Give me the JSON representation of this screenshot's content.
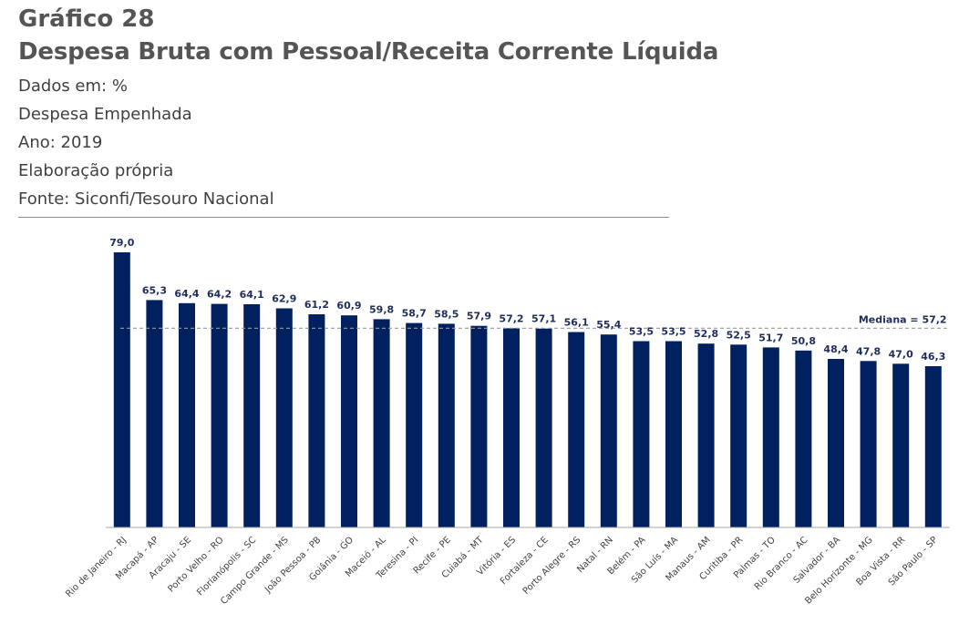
{
  "header": {
    "chart_number": "Gráfico 28",
    "title": "Despesa Bruta com Pessoal/Receita Corrente Líquida",
    "units": "Dados em: %",
    "expense_type": "Despesa Empenhada",
    "year": "Ano: 2019",
    "elaboration": "Elaboração própria",
    "source": "Fonte: Siconfi/Tesouro Nacional"
  },
  "colors": {
    "bar": "#002060",
    "median_line": "#999999",
    "axis": "#a6a6a6"
  },
  "chart_data": {
    "type": "bar",
    "title": "Despesa Bruta com Pessoal/Receita Corrente Líquida",
    "xlabel": "",
    "ylabel": "",
    "ylim": [
      0,
      79
    ],
    "grid": false,
    "categories": [
      "Rio de Janeiro - RJ",
      "Macapá - AP",
      "Aracaju - SE",
      "Porto Velho - RO",
      "Florianópolis - SC",
      "Campo Grande - MS",
      "João Pessoa - PB",
      "Goiânia - GO",
      "Maceió - AL",
      "Teresina - PI",
      "Recife - PE",
      "Cuiabá - MT",
      "Vitória - ES",
      "Fortaleza - CE",
      "Porto Alegre - RS",
      "Natal - RN",
      "Belém - PA",
      "São Luís - MA",
      "Manaus - AM",
      "Curitiba - PR",
      "Palmas - TO",
      "Rio Branco - AC",
      "Salvador - BA",
      "Belo Horizonte - MG",
      "Boa Vista - RR",
      "São Paulo - SP"
    ],
    "values": [
      79.0,
      65.3,
      64.4,
      64.2,
      64.1,
      62.9,
      61.2,
      60.9,
      59.8,
      58.7,
      58.5,
      57.9,
      57.2,
      57.1,
      56.1,
      55.4,
      53.5,
      53.5,
      52.8,
      52.5,
      51.7,
      50.8,
      48.4,
      47.8,
      47.0,
      46.3
    ],
    "labels": [
      "79,0",
      "65,3",
      "64,4",
      "64,2",
      "64,1",
      "62,9",
      "61,2",
      "60,9",
      "59,8",
      "58,7",
      "58,5",
      "57,9",
      "57,2",
      "57,1",
      "56,1",
      "55,4",
      "53,5",
      "53,5",
      "52,8",
      "52,5",
      "51,7",
      "50,8",
      "48,4",
      "47,8",
      "47,0",
      "46,3"
    ],
    "median": {
      "value": 57.2,
      "label": "Mediana = 57,2"
    }
  }
}
